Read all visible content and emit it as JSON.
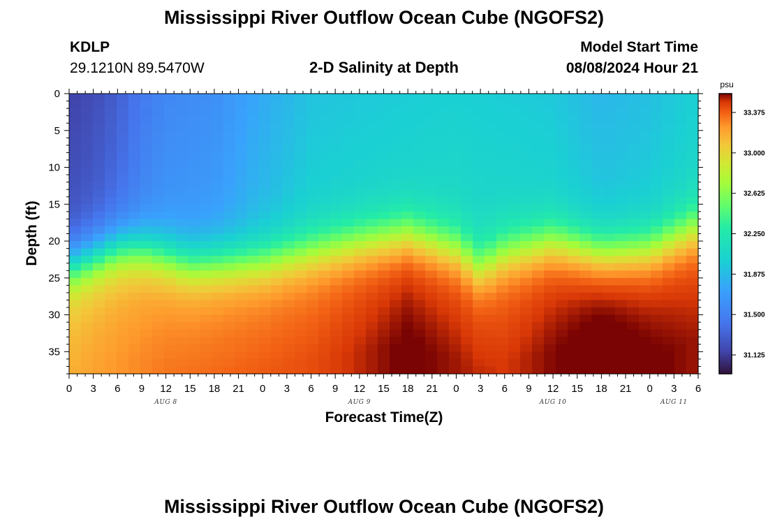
{
  "header": {
    "title": "Mississippi River Outflow Ocean Cube (NGOFS2)",
    "station": "KDLP",
    "coords": "29.1210N  89.5470W",
    "subtitle": "2-D Salinity at Depth",
    "model_start_label": "Model Start Time",
    "model_start_value": "08/08/2024 Hour 21"
  },
  "footer": {
    "title": "Mississippi River Outflow Ocean Cube (NGOFS2)"
  },
  "chart_data": {
    "type": "heatmap",
    "title": "2-D Salinity at Depth",
    "xlabel": "Forecast Time(Z)",
    "ylabel": "Depth (ft)",
    "x_range_hours": [
      0,
      78
    ],
    "y_range_ft": [
      0,
      38
    ],
    "x_tick_labels": [
      "0",
      "3",
      "6",
      "9",
      "12",
      "15",
      "18",
      "21",
      "0",
      "3",
      "6",
      "9",
      "12",
      "15",
      "18",
      "21",
      "0",
      "3",
      "6",
      "9",
      "12",
      "15",
      "18",
      "21",
      "0",
      "3",
      "6"
    ],
    "x_tick_hours": [
      0,
      3,
      6,
      9,
      12,
      15,
      18,
      21,
      24,
      27,
      30,
      33,
      36,
      39,
      42,
      45,
      48,
      51,
      54,
      57,
      60,
      63,
      66,
      69,
      72,
      75,
      78
    ],
    "date_labels": [
      {
        "text": "AUG 8",
        "hour": 12
      },
      {
        "text": "AUG 9",
        "hour": 36
      },
      {
        "text": "AUG 10",
        "hour": 60
      },
      {
        "text": "AUG 11",
        "hour": 75
      }
    ],
    "y_tick_values": [
      0,
      5,
      10,
      15,
      20,
      25,
      30,
      35
    ],
    "y_tick_labels": [
      "0",
      "5",
      "10",
      "15",
      "20",
      "25",
      "30",
      "35"
    ],
    "colorbar": {
      "unit": "psu",
      "min": 30.95,
      "max": 33.55,
      "tick_values": [
        31.125,
        31.5,
        31.875,
        32.25,
        32.625,
        33.0,
        33.375
      ],
      "tick_labels": [
        "31.125",
        "31.500",
        "31.875",
        "32.250",
        "32.625",
        "33.000",
        "33.375"
      ]
    },
    "halocline_depth_ft": {
      "hours": [
        0,
        6,
        9,
        15,
        24,
        36,
        42,
        48,
        51,
        54,
        60,
        66,
        72,
        78
      ],
      "depth": [
        23.5,
        21,
        21,
        23,
        22.5,
        20,
        19,
        21,
        23.5,
        21.5,
        20,
        21.5,
        21,
        18
      ]
    },
    "surface_salinity_psu": {
      "hours": [
        0,
        3,
        6,
        9,
        12,
        18,
        24,
        30,
        36,
        48,
        60,
        66,
        72,
        78
      ],
      "values": [
        31.15,
        31.2,
        31.3,
        31.45,
        31.55,
        31.6,
        31.78,
        31.92,
        31.95,
        32.0,
        31.95,
        31.85,
        31.9,
        32.0
      ]
    },
    "bottom_salinity_psu": {
      "hours": [
        0,
        12,
        30,
        42,
        54,
        66,
        78
      ],
      "values": [
        33.05,
        33.2,
        33.3,
        33.45,
        33.35,
        33.5,
        33.4
      ]
    }
  }
}
